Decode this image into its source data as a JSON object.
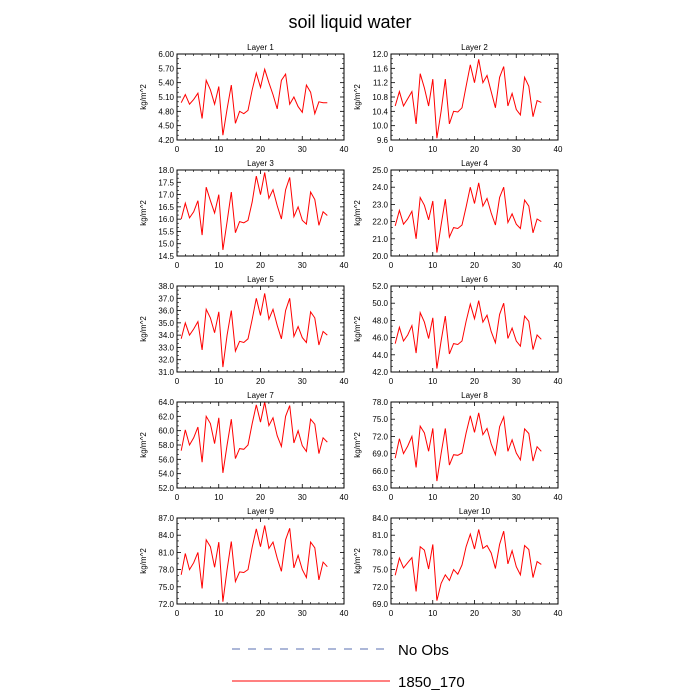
{
  "title": "soil liquid water",
  "legend": [
    {
      "label": "No Obs",
      "color": "#5a6fb0",
      "dashed": true
    },
    {
      "label": "1850_170",
      "color": "#ff0000",
      "dashed": false
    }
  ],
  "chart_data": [
    {
      "type": "line",
      "title": "Layer 1",
      "ylabel": "kg/m^2",
      "xlim": [
        0,
        40
      ],
      "ylim": [
        4.2,
        6.0
      ],
      "xticks": [
        "0",
        "10",
        "20",
        "30",
        "40"
      ],
      "yticks": [
        "4.20",
        "4.50",
        "4.80",
        "5.10",
        "5.40",
        "5.70",
        "6.00"
      ],
      "series": [
        {
          "color": "#ff0000",
          "x": [
            1,
            2,
            3,
            4,
            5,
            6,
            7,
            8,
            9,
            10,
            11,
            12,
            13,
            14,
            15,
            16,
            17,
            18,
            19,
            20,
            21,
            22,
            23,
            24,
            25,
            26,
            27,
            28,
            29,
            30,
            31,
            32,
            33,
            34,
            35,
            36
          ],
          "values": [
            4.98,
            5.15,
            4.95,
            5.05,
            5.18,
            4.65,
            5.45,
            5.25,
            4.95,
            5.32,
            4.3,
            4.85,
            5.35,
            4.55,
            4.8,
            4.75,
            4.82,
            5.25,
            5.6,
            5.3,
            5.68,
            5.4,
            5.15,
            4.85,
            5.45,
            5.58,
            4.95,
            5.1,
            4.9,
            4.78,
            5.35,
            5.2,
            4.75,
            5.0,
            4.98,
            4.98
          ]
        }
      ]
    },
    {
      "type": "line",
      "title": "Layer 2",
      "ylabel": "kg/m^2",
      "xlim": [
        0,
        40
      ],
      "ylim": [
        9.6,
        12.0
      ],
      "xticks": [
        "0",
        "10",
        "20",
        "30",
        "40"
      ],
      "yticks": [
        "9.6",
        "10.0",
        "10.4",
        "10.8",
        "11.2",
        "11.6",
        "12.0"
      ],
      "series": [
        {
          "color": "#ff0000",
          "x": [
            1,
            2,
            3,
            4,
            5,
            6,
            7,
            8,
            9,
            10,
            11,
            12,
            13,
            14,
            15,
            16,
            17,
            18,
            19,
            20,
            21,
            22,
            23,
            24,
            25,
            26,
            27,
            28,
            29,
            30,
            31,
            32,
            33,
            34,
            35,
            36
          ],
          "values": [
            10.55,
            10.95,
            10.55,
            10.75,
            10.95,
            10.05,
            11.45,
            11.05,
            10.55,
            11.3,
            9.65,
            10.4,
            11.3,
            10.05,
            10.4,
            10.38,
            10.5,
            11.1,
            11.7,
            11.2,
            11.85,
            11.2,
            11.4,
            10.95,
            10.5,
            11.35,
            11.65,
            10.55,
            10.9,
            10.45,
            10.3,
            11.35,
            11.1,
            10.25,
            10.7,
            10.65
          ]
        }
      ]
    },
    {
      "type": "line",
      "title": "Layer 3",
      "ylabel": "kg/m^2",
      "xlim": [
        0,
        40
      ],
      "ylim": [
        14.5,
        18.0
      ],
      "xticks": [
        "0",
        "10",
        "20",
        "30",
        "40"
      ],
      "yticks": [
        "14.5",
        "15.0",
        "15.5",
        "16.0",
        "16.5",
        "17.0",
        "17.5",
        "18.0"
      ],
      "series": [
        {
          "color": "#ff0000",
          "x": [
            1,
            2,
            3,
            4,
            5,
            6,
            7,
            8,
            9,
            10,
            11,
            12,
            13,
            14,
            15,
            16,
            17,
            18,
            19,
            20,
            21,
            22,
            23,
            24,
            25,
            26,
            27,
            28,
            29,
            30,
            31,
            32,
            33,
            34,
            35,
            36
          ],
          "values": [
            16.0,
            16.65,
            16.05,
            16.3,
            16.75,
            15.35,
            17.3,
            16.75,
            16.25,
            17.0,
            14.75,
            15.9,
            17.1,
            15.45,
            15.9,
            15.85,
            15.95,
            16.7,
            17.75,
            17.0,
            17.9,
            16.85,
            17.2,
            16.55,
            16.0,
            17.2,
            17.7,
            16.1,
            16.5,
            15.95,
            15.8,
            17.1,
            16.8,
            15.75,
            16.3,
            16.15
          ]
        }
      ]
    },
    {
      "type": "line",
      "title": "Layer 4",
      "ylabel": "kg/m^2",
      "xlim": [
        0,
        40
      ],
      "ylim": [
        20.0,
        25.0
      ],
      "xticks": [
        "0",
        "10",
        "20",
        "30",
        "40"
      ],
      "yticks": [
        "20.0",
        "21.0",
        "22.0",
        "23.0",
        "24.0",
        "25.0"
      ],
      "series": [
        {
          "color": "#ff0000",
          "x": [
            1,
            2,
            3,
            4,
            5,
            6,
            7,
            8,
            9,
            10,
            11,
            12,
            13,
            14,
            15,
            16,
            17,
            18,
            19,
            20,
            21,
            22,
            23,
            24,
            25,
            26,
            27,
            28,
            29,
            30,
            31,
            32,
            33,
            34,
            35,
            36
          ],
          "values": [
            21.75,
            22.65,
            21.85,
            22.15,
            22.6,
            21.0,
            23.4,
            22.95,
            22.1,
            23.2,
            20.2,
            21.8,
            23.3,
            21.1,
            21.65,
            21.6,
            21.8,
            22.85,
            24.0,
            23.05,
            24.25,
            22.9,
            23.35,
            22.5,
            21.8,
            23.4,
            24.0,
            21.95,
            22.45,
            21.85,
            21.6,
            23.25,
            22.9,
            21.35,
            22.15,
            22.0
          ]
        }
      ]
    },
    {
      "type": "line",
      "title": "Layer 5",
      "ylabel": "kg/m^2",
      "xlim": [
        0,
        40
      ],
      "ylim": [
        31.0,
        38.0
      ],
      "xticks": [
        "0",
        "10",
        "20",
        "30",
        "40"
      ],
      "yticks": [
        "31.0",
        "32.0",
        "33.0",
        "34.0",
        "35.0",
        "36.0",
        "37.0",
        "38.0"
      ],
      "series": [
        {
          "color": "#ff0000",
          "x": [
            1,
            2,
            3,
            4,
            5,
            6,
            7,
            8,
            9,
            10,
            11,
            12,
            13,
            14,
            15,
            16,
            17,
            18,
            19,
            20,
            21,
            22,
            23,
            24,
            25,
            26,
            27,
            28,
            29,
            30,
            31,
            32,
            33,
            34,
            35,
            36
          ],
          "values": [
            33.7,
            35.0,
            34.0,
            34.5,
            35.1,
            32.8,
            36.1,
            35.4,
            34.2,
            35.9,
            31.4,
            34.0,
            36.0,
            32.7,
            33.5,
            33.4,
            33.7,
            35.3,
            37.0,
            35.6,
            37.4,
            35.3,
            36.1,
            34.8,
            33.7,
            36.0,
            37.0,
            33.9,
            34.7,
            33.8,
            33.4,
            35.9,
            35.4,
            33.2,
            34.3,
            34.0
          ]
        }
      ]
    },
    {
      "type": "line",
      "title": "Layer 6",
      "ylabel": "kg/m^2",
      "xlim": [
        0,
        40
      ],
      "ylim": [
        42.0,
        52.0
      ],
      "xticks": [
        "0",
        "10",
        "20",
        "30",
        "40"
      ],
      "yticks": [
        "42.0",
        "44.0",
        "46.0",
        "48.0",
        "50.0",
        "52.0"
      ],
      "series": [
        {
          "color": "#ff0000",
          "x": [
            1,
            2,
            3,
            4,
            5,
            6,
            7,
            8,
            9,
            10,
            11,
            12,
            13,
            14,
            15,
            16,
            17,
            18,
            19,
            20,
            21,
            22,
            23,
            24,
            25,
            26,
            27,
            28,
            29,
            30,
            31,
            32,
            33,
            34,
            35,
            36
          ],
          "values": [
            45.3,
            47.2,
            45.6,
            46.3,
            47.4,
            44.2,
            48.9,
            47.8,
            45.9,
            48.3,
            42.4,
            45.6,
            48.5,
            44.1,
            45.3,
            45.2,
            45.6,
            47.9,
            49.9,
            48.2,
            50.3,
            47.8,
            48.6,
            46.7,
            45.4,
            48.7,
            50.0,
            45.9,
            47.1,
            45.6,
            45.0,
            48.5,
            47.9,
            44.6,
            46.3,
            45.8
          ]
        }
      ]
    },
    {
      "type": "line",
      "title": "Layer 7",
      "ylabel": "kg/m^2",
      "xlim": [
        0,
        40
      ],
      "ylim": [
        52.0,
        64.0
      ],
      "xticks": [
        "0",
        "10",
        "20",
        "30",
        "40"
      ],
      "yticks": [
        "52.0",
        "54.0",
        "56.0",
        "58.0",
        "60.0",
        "62.0",
        "64.0"
      ],
      "series": [
        {
          "color": "#ff0000",
          "x": [
            1,
            2,
            3,
            4,
            5,
            6,
            7,
            8,
            9,
            10,
            11,
            12,
            13,
            14,
            15,
            16,
            17,
            18,
            19,
            20,
            21,
            22,
            23,
            24,
            25,
            26,
            27,
            28,
            29,
            30,
            31,
            32,
            33,
            34,
            35,
            36
          ],
          "values": [
            57.2,
            60.1,
            58.0,
            59.0,
            60.5,
            55.6,
            62.0,
            61.0,
            58.2,
            61.8,
            54.1,
            58.0,
            61.6,
            56.1,
            57.5,
            57.4,
            58.0,
            61.0,
            63.6,
            61.2,
            64.0,
            60.7,
            61.8,
            59.3,
            57.8,
            62.0,
            63.5,
            58.3,
            60.0,
            57.9,
            57.1,
            61.6,
            60.9,
            56.8,
            59.0,
            58.4
          ]
        }
      ]
    },
    {
      "type": "line",
      "title": "Layer 8",
      "ylabel": "kg/m^2",
      "xlim": [
        0,
        40
      ],
      "ylim": [
        63.0,
        78.0
      ],
      "xticks": [
        "0",
        "10",
        "20",
        "30",
        "40"
      ],
      "yticks": [
        "63.0",
        "66.0",
        "69.0",
        "72.0",
        "75.0",
        "78.0"
      ],
      "series": [
        {
          "color": "#ff0000",
          "x": [
            1,
            2,
            3,
            4,
            5,
            6,
            7,
            8,
            9,
            10,
            11,
            12,
            13,
            14,
            15,
            16,
            17,
            18,
            19,
            20,
            21,
            22,
            23,
            24,
            25,
            26,
            27,
            28,
            29,
            30,
            31,
            32,
            33,
            34,
            35,
            36
          ],
          "values": [
            68.2,
            71.6,
            69.0,
            70.3,
            72.0,
            66.6,
            73.8,
            72.6,
            69.4,
            73.4,
            64.2,
            69.0,
            73.4,
            67.0,
            68.8,
            68.7,
            69.1,
            72.6,
            75.6,
            72.7,
            76.1,
            72.3,
            73.4,
            70.7,
            68.8,
            73.7,
            75.4,
            69.4,
            71.4,
            69.1,
            67.9,
            73.3,
            72.5,
            67.7,
            70.2,
            69.4
          ]
        }
      ]
    },
    {
      "type": "line",
      "title": "Layer 9",
      "ylabel": "kg/m^2",
      "xlim": [
        0,
        40
      ],
      "ylim": [
        72.0,
        87.0
      ],
      "xticks": [
        "0",
        "10",
        "20",
        "30",
        "40"
      ],
      "yticks": [
        "72.0",
        "75.0",
        "78.0",
        "81.0",
        "84.0",
        "87.0"
      ],
      "series": [
        {
          "color": "#ff0000",
          "x": [
            1,
            2,
            3,
            4,
            5,
            6,
            7,
            8,
            9,
            10,
            11,
            12,
            13,
            14,
            15,
            16,
            17,
            18,
            19,
            20,
            21,
            22,
            23,
            24,
            25,
            26,
            27,
            28,
            29,
            30,
            31,
            32,
            33,
            34,
            35,
            36
          ],
          "values": [
            77.1,
            80.8,
            78.0,
            79.2,
            81.0,
            74.7,
            83.2,
            82.0,
            78.4,
            82.8,
            72.4,
            78.0,
            82.9,
            75.9,
            77.6,
            77.5,
            78.0,
            81.9,
            85.1,
            82.0,
            85.7,
            81.7,
            82.8,
            80.0,
            77.7,
            83.2,
            85.2,
            78.3,
            80.5,
            78.0,
            76.6,
            82.8,
            81.8,
            76.2,
            79.3,
            78.5
          ]
        }
      ]
    },
    {
      "type": "line",
      "title": "Layer 10",
      "ylabel": "kg/m^2",
      "xlim": [
        0,
        40
      ],
      "ylim": [
        69.0,
        84.0
      ],
      "xticks": [
        "0",
        "10",
        "20",
        "30",
        "40"
      ],
      "yticks": [
        "69.0",
        "72.0",
        "75.0",
        "78.0",
        "81.0",
        "84.0"
      ],
      "series": [
        {
          "color": "#ff0000",
          "x": [
            1,
            2,
            3,
            4,
            5,
            6,
            7,
            8,
            9,
            10,
            11,
            12,
            13,
            14,
            15,
            16,
            17,
            18,
            19,
            20,
            21,
            22,
            23,
            24,
            25,
            26,
            27,
            28,
            29,
            30,
            31,
            32,
            33,
            34,
            35,
            36
          ],
          "values": [
            74.0,
            77.0,
            75.3,
            76.2,
            77.1,
            71.2,
            79.0,
            78.4,
            75.1,
            79.4,
            69.6,
            72.6,
            74.1,
            73.1,
            75.0,
            74.2,
            75.8,
            79.0,
            81.2,
            78.6,
            82.0,
            78.7,
            79.2,
            77.9,
            75.2,
            79.4,
            81.7,
            76.0,
            78.3,
            75.5,
            74.1,
            79.2,
            78.5,
            73.6,
            76.4,
            75.9
          ]
        }
      ]
    }
  ]
}
